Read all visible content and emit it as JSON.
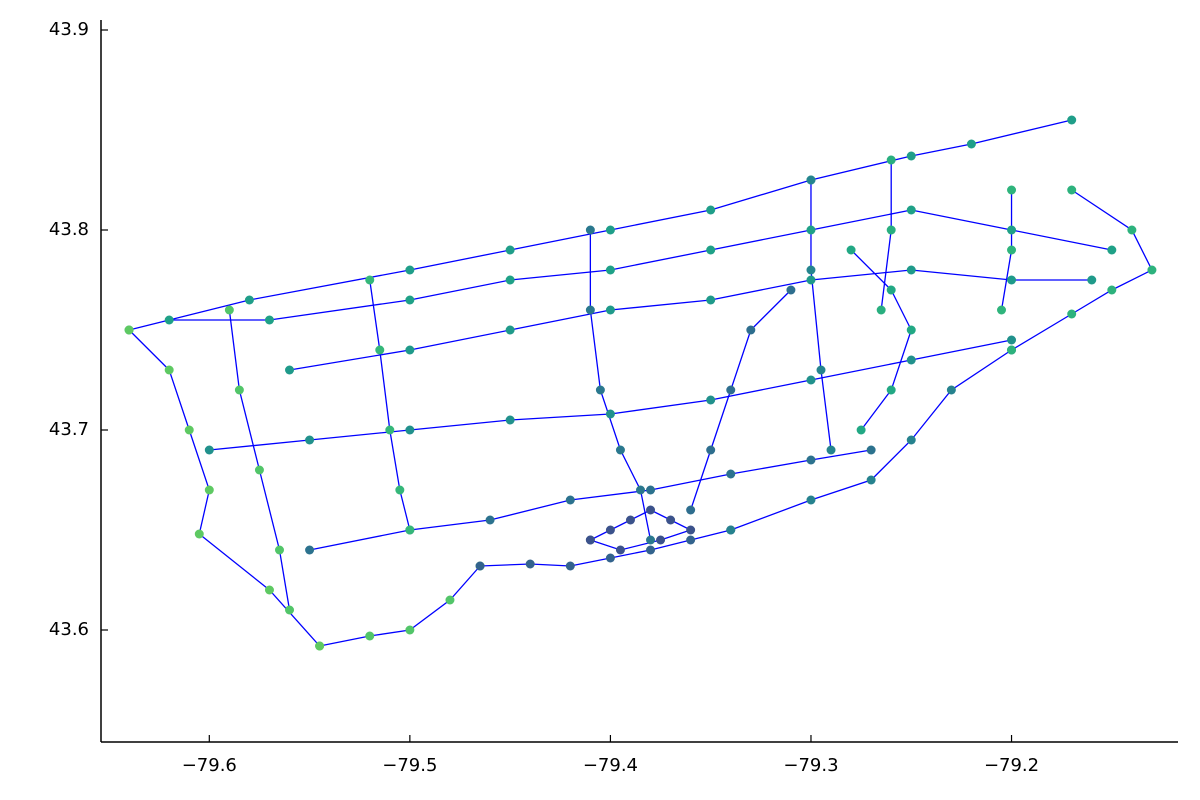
{
  "chart_data": {
    "type": "scatter",
    "xlim": [
      -79.654,
      -79.117
    ],
    "ylim": [
      43.544,
      43.905
    ],
    "xticks": [
      {
        "value": -79.6,
        "label": "−79.6"
      },
      {
        "value": -79.5,
        "label": "−79.5"
      },
      {
        "value": -79.4,
        "label": "−79.4"
      },
      {
        "value": -79.3,
        "label": "−79.3"
      },
      {
        "value": -79.2,
        "label": "−79.2"
      }
    ],
    "yticks": [
      43.6,
      43.7,
      43.8,
      43.9
    ],
    "grid": false,
    "line_color": "#0000ff",
    "series": [
      {
        "color": "#1f9e89",
        "x": [
          -79.64,
          -79.58,
          -79.5,
          -79.45,
          -79.4,
          -79.35,
          -79.3,
          -79.25,
          -79.22,
          -79.17
        ],
        "y": [
          43.75,
          43.765,
          43.78,
          43.79,
          43.8,
          43.81,
          43.825,
          43.837,
          43.843,
          43.855
        ]
      },
      {
        "color": "#52c569",
        "x": [
          -79.545,
          -79.52,
          -79.5,
          -79.48,
          -79.465
        ],
        "y": [
          43.592,
          43.597,
          43.6,
          43.615,
          43.632
        ]
      },
      {
        "color": "#33638d",
        "x": [
          -79.465,
          -79.44,
          -79.42,
          -79.4,
          -79.38,
          -79.36,
          -79.34
        ],
        "y": [
          43.632,
          43.633,
          43.632,
          43.636,
          43.64,
          43.645,
          43.65
        ]
      },
      {
        "color": "#26828e",
        "x": [
          -79.34,
          -79.3,
          -79.27,
          -79.25,
          -79.23,
          -79.2
        ],
        "y": [
          43.65,
          43.665,
          43.675,
          43.695,
          43.72,
          43.74
        ]
      },
      {
        "color": "#2db27d",
        "x": [
          -79.2,
          -79.17,
          -79.15,
          -79.13,
          -79.14,
          -79.17
        ],
        "y": [
          43.74,
          43.758,
          43.77,
          43.78,
          43.8,
          43.82
        ]
      },
      {
        "color": "#5ec962",
        "x": [
          -79.64,
          -79.62,
          -79.61,
          -79.6,
          -79.605,
          -79.57,
          -79.545
        ],
        "y": [
          43.75,
          43.73,
          43.7,
          43.67,
          43.648,
          43.62,
          43.592
        ]
      },
      {
        "color": "#2c728e",
        "x": [
          -79.55,
          -79.5,
          -79.46,
          -79.42,
          -79.38,
          -79.34,
          -79.3,
          -79.27
        ],
        "y": [
          43.64,
          43.65,
          43.655,
          43.665,
          43.67,
          43.678,
          43.685,
          43.69
        ]
      },
      {
        "color": "#21918c",
        "x": [
          -79.6,
          -79.55,
          -79.5,
          -79.45,
          -79.4,
          -79.35,
          -79.3,
          -79.25,
          -79.2
        ],
        "y": [
          43.69,
          43.695,
          43.7,
          43.705,
          43.708,
          43.715,
          43.725,
          43.735,
          43.745
        ]
      },
      {
        "color": "#1fa187",
        "x": [
          -79.62,
          -79.57,
          -79.5,
          -79.45,
          -79.4,
          -79.35,
          -79.3,
          -79.25,
          -79.2,
          -79.15
        ],
        "y": [
          43.755,
          43.755,
          43.765,
          43.775,
          43.78,
          43.79,
          43.8,
          43.81,
          43.8,
          43.79
        ]
      },
      {
        "color": "#1f9a8a",
        "x": [
          -79.56,
          -79.5,
          -79.45,
          -79.4,
          -79.35,
          -79.3,
          -79.25,
          -79.2,
          -79.16
        ],
        "y": [
          43.73,
          43.74,
          43.75,
          43.76,
          43.765,
          43.775,
          43.78,
          43.775,
          43.775
        ]
      },
      {
        "color": "#2a788e",
        "x": [
          -79.41,
          -79.41,
          -79.405,
          -79.395,
          -79.385,
          -79.38
        ],
        "y": [
          43.8,
          43.76,
          43.72,
          43.69,
          43.67,
          43.645
        ]
      },
      {
        "color": "#35b779",
        "x": [
          -79.52,
          -79.515,
          -79.51,
          -79.505,
          -79.5
        ],
        "y": [
          43.775,
          43.74,
          43.7,
          43.67,
          43.65
        ]
      },
      {
        "color": "#25858e",
        "x": [
          -79.3,
          -79.3,
          -79.295,
          -79.29
        ],
        "y": [
          43.825,
          43.78,
          43.73,
          43.69
        ]
      },
      {
        "color": "#52c569",
        "x": [
          -79.59,
          -79.585,
          -79.575,
          -79.565,
          -79.56
        ],
        "y": [
          43.76,
          43.72,
          43.68,
          43.64,
          43.61
        ]
      },
      {
        "color": "#3b528b",
        "x": [
          -79.41,
          -79.4,
          -79.39,
          -79.38,
          -79.37,
          -79.36,
          -79.375,
          -79.395,
          -79.41
        ],
        "y": [
          43.645,
          43.65,
          43.655,
          43.66,
          43.655,
          43.65,
          43.645,
          43.64,
          43.645
        ]
      },
      {
        "color": "#2e6e8e",
        "x": [
          -79.36,
          -79.35,
          -79.34,
          -79.33,
          -79.31
        ],
        "y": [
          43.66,
          43.69,
          43.72,
          43.75,
          43.77
        ]
      },
      {
        "color": "#22a884",
        "x": [
          -79.28,
          -79.26,
          -79.25,
          -79.26,
          -79.275
        ],
        "y": [
          43.79,
          43.77,
          43.75,
          43.72,
          43.7
        ]
      },
      {
        "color": "#29af7f",
        "x": [
          -79.26,
          -79.26,
          -79.265
        ],
        "y": [
          43.835,
          43.8,
          43.76
        ]
      },
      {
        "color": "#2fb47c",
        "x": [
          -79.2,
          -79.2,
          -79.205
        ],
        "y": [
          43.82,
          43.79,
          43.76
        ]
      }
    ]
  }
}
